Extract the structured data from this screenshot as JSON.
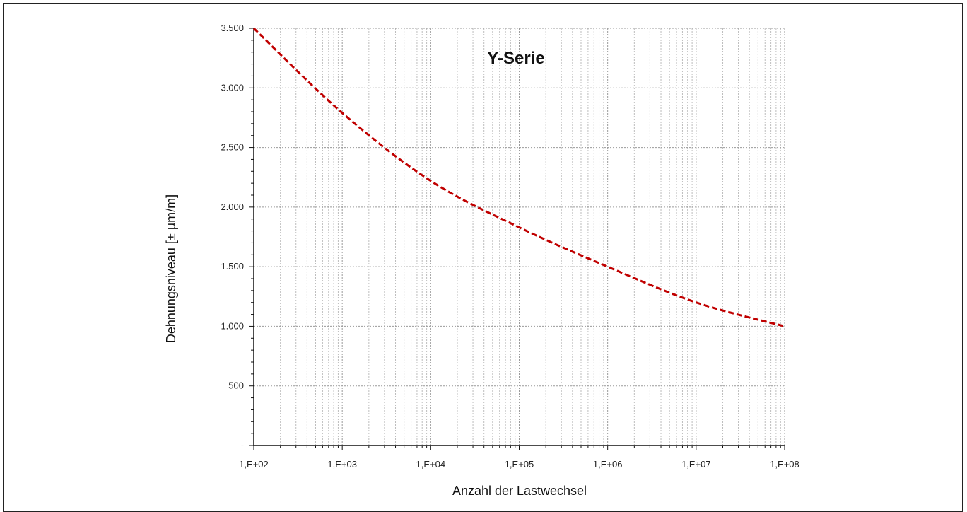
{
  "chart_data": {
    "type": "line",
    "title": "Y-Serie",
    "xlabel": "Anzahl der Lastwechsel",
    "ylabel": "Dehnungsniveau [± µm/m]",
    "x_scale": "log",
    "xlim": [
      100,
      100000000
    ],
    "ylim": [
      0,
      3500
    ],
    "x_tick_values": [
      100,
      1000,
      10000,
      100000,
      1000000,
      10000000,
      100000000
    ],
    "x_tick_labels": [
      "1,E+02",
      "1,E+03",
      "1,E+04",
      "1,E+05",
      "1,E+06",
      "1,E+07",
      "1,E+08"
    ],
    "y_tick_values": [
      0,
      500,
      1000,
      1500,
      2000,
      2500,
      3000,
      3500
    ],
    "y_tick_labels": [
      "-",
      "500",
      "1.000",
      "1.500",
      "2.000",
      "2.500",
      "3.000",
      "3.500"
    ],
    "grid": true,
    "legend": "none",
    "series": [
      {
        "color": "#c00000",
        "line_style": "dashed",
        "x": [
          100,
          1000,
          10000,
          100000,
          1000000,
          10000000,
          100000000
        ],
        "y": [
          3500,
          2790,
          2220,
          1830,
          1500,
          1200,
          1000
        ]
      }
    ]
  }
}
